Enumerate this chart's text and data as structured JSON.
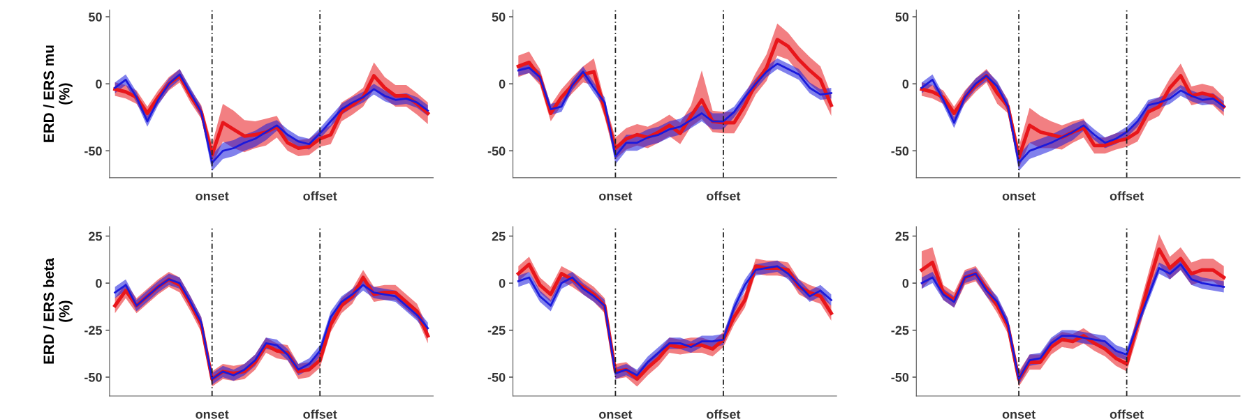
{
  "chart_data": [
    {
      "type": "line",
      "ylabel": "ERD / ERS mu\n(%)",
      "ylim": [
        -70,
        55
      ],
      "yticks": [
        -50,
        0,
        50
      ],
      "ref_lines": [
        {
          "axis": "x",
          "value": "onset",
          "color": "#222222",
          "line_style": "dashed"
        },
        {
          "axis": "x",
          "value": "offset",
          "color": "#222222",
          "line_style": "dashed"
        }
      ],
      "categories": [
        null,
        null,
        null,
        null,
        null,
        null,
        null,
        null,
        null,
        "onset",
        null,
        null,
        null,
        null,
        null,
        null,
        null,
        null,
        null,
        "offset",
        null,
        null,
        null,
        null,
        null,
        null,
        null,
        null,
        null,
        null
      ],
      "series": [
        {
          "color": "#e8161b",
          "values": [
            -4,
            -6,
            -10,
            -22,
            -10,
            0,
            6,
            -9,
            -21,
            -53,
            -29,
            -34,
            -39,
            -38,
            -36,
            -32,
            -44,
            -48,
            -47,
            -41,
            -38,
            -21,
            -16,
            -10,
            6,
            -3,
            -9,
            -9,
            -15,
            -22
          ],
          "lower": [
            -9,
            -11,
            -15,
            -27,
            -15,
            -5,
            1,
            -14,
            -26,
            -61,
            -43,
            -48,
            -51,
            -48,
            -46,
            -40,
            -50,
            -54,
            -53,
            -47,
            -45,
            -28,
            -23,
            -17,
            -4,
            -11,
            -17,
            -17,
            -23,
            -30
          ],
          "upper": [
            1,
            -1,
            -5,
            -17,
            -5,
            5,
            11,
            -4,
            -16,
            -45,
            -15,
            -20,
            -27,
            -28,
            -26,
            -24,
            -38,
            -42,
            -41,
            -35,
            -31,
            -14,
            -9,
            -3,
            16,
            5,
            -1,
            -1,
            -7,
            -14
          ]
        },
        {
          "color": "#1a1adc",
          "values": [
            -3,
            3,
            -10,
            -28,
            -12,
            0,
            7,
            -7,
            -21,
            -59,
            -50,
            -48,
            -44,
            -41,
            -36,
            -31,
            -38,
            -43,
            -45,
            -37,
            -28,
            -19,
            -14,
            -10,
            -4,
            -9,
            -12,
            -11,
            -14,
            -20
          ],
          "lower": [
            -7,
            -1,
            -14,
            -32,
            -16,
            -4,
            3,
            -11,
            -25,
            -65,
            -56,
            -54,
            -50,
            -47,
            -42,
            -35,
            -42,
            -47,
            -49,
            -41,
            -32,
            -23,
            -18,
            -14,
            -8,
            -13,
            -16,
            -15,
            -18,
            -24
          ],
          "upper": [
            1,
            7,
            -6,
            -24,
            -8,
            4,
            11,
            -3,
            -17,
            -53,
            -44,
            -42,
            -38,
            -35,
            -30,
            -27,
            -34,
            -39,
            -41,
            -33,
            -24,
            -15,
            -10,
            -6,
            0,
            -5,
            -8,
            -7,
            -10,
            -16
          ]
        }
      ]
    },
    {
      "type": "line",
      "ylim": [
        -70,
        55
      ],
      "yticks": [
        -50,
        0,
        50
      ],
      "ref_lines": [
        {
          "axis": "x",
          "value": "onset",
          "color": "#222222",
          "line_style": "dashed"
        },
        {
          "axis": "x",
          "value": "offset",
          "color": "#222222",
          "line_style": "dashed"
        }
      ],
      "categories": [
        null,
        null,
        null,
        null,
        null,
        null,
        null,
        null,
        null,
        "onset",
        null,
        null,
        null,
        null,
        null,
        null,
        null,
        null,
        null,
        "offset",
        null,
        null,
        null,
        null,
        null,
        null,
        null,
        null,
        null,
        null
      ],
      "series": [
        {
          "color": "#e8161b",
          "values": [
            13,
            16,
            5,
            -22,
            -10,
            -1,
            7,
            9,
            -19,
            -48,
            -41,
            -38,
            -40,
            -36,
            -31,
            -37,
            -24,
            -12,
            -28,
            -29,
            -29,
            -16,
            0,
            12,
            33,
            28,
            18,
            10,
            3,
            -16
          ],
          "lower": [
            5,
            8,
            -1,
            -28,
            -16,
            -7,
            1,
            -1,
            -25,
            -56,
            -49,
            -46,
            -48,
            -44,
            -39,
            -45,
            -32,
            -26,
            -36,
            -37,
            -37,
            -24,
            -8,
            2,
            21,
            18,
            8,
            0,
            -7,
            -24
          ],
          "upper": [
            21,
            24,
            11,
            -16,
            -4,
            5,
            13,
            19,
            -13,
            -40,
            -33,
            -30,
            -32,
            -28,
            -23,
            -29,
            -16,
            10,
            -20,
            -21,
            -21,
            -8,
            8,
            22,
            45,
            38,
            28,
            20,
            13,
            -8
          ]
        },
        {
          "color": "#1a1adc",
          "values": [
            10,
            12,
            5,
            -19,
            -17,
            -1,
            9,
            -3,
            -14,
            -54,
            -44,
            -44,
            -40,
            -38,
            -34,
            -32,
            -27,
            -22,
            -28,
            -28,
            -21,
            -10,
            0,
            9,
            15,
            11,
            7,
            -3,
            -8,
            -7
          ],
          "lower": [
            6,
            8,
            1,
            -23,
            -21,
            -5,
            5,
            -7,
            -18,
            -60,
            -50,
            -50,
            -46,
            -44,
            -40,
            -38,
            -33,
            -28,
            -34,
            -34,
            -25,
            -14,
            -4,
            5,
            11,
            7,
            3,
            -7,
            -12,
            -11
          ],
          "upper": [
            14,
            16,
            9,
            -15,
            -13,
            3,
            13,
            1,
            -10,
            -48,
            -38,
            -38,
            -34,
            -32,
            -28,
            -26,
            -21,
            -16,
            -22,
            -22,
            -17,
            -6,
            4,
            13,
            19,
            15,
            11,
            1,
            -4,
            -3
          ]
        }
      ]
    },
    {
      "type": "line",
      "ylim": [
        -70,
        55
      ],
      "yticks": [
        -50,
        0,
        50
      ],
      "ref_lines": [
        {
          "axis": "x",
          "value": "onset",
          "color": "#222222",
          "line_style": "dashed"
        },
        {
          "axis": "x",
          "value": "offset",
          "color": "#222222",
          "line_style": "dashed"
        }
      ],
      "categories": [
        null,
        null,
        null,
        null,
        null,
        null,
        null,
        null,
        null,
        "onset",
        null,
        null,
        null,
        null,
        null,
        null,
        null,
        null,
        null,
        "offset",
        null,
        null,
        null,
        null,
        null,
        null,
        null,
        null,
        null,
        null
      ],
      "series": [
        {
          "color": "#e8161b",
          "values": [
            -4,
            -6,
            -10,
            -22,
            -10,
            -1,
            6,
            -7,
            -17,
            -55,
            -31,
            -36,
            -38,
            -40,
            -36,
            -33,
            -46,
            -46,
            -43,
            -41,
            -36,
            -21,
            -17,
            -3,
            6,
            -9,
            -7,
            -9,
            -17,
            null
          ],
          "lower": [
            -9,
            -11,
            -15,
            -27,
            -15,
            -6,
            1,
            -15,
            -22,
            -63,
            -44,
            -48,
            -48,
            -49,
            -44,
            -40,
            -52,
            -52,
            -49,
            -47,
            -43,
            -28,
            -24,
            -10,
            -3,
            -16,
            -14,
            -16,
            -24,
            null
          ],
          "upper": [
            1,
            -1,
            -5,
            -17,
            -5,
            4,
            11,
            1,
            -12,
            -47,
            -18,
            -24,
            -28,
            -31,
            -28,
            -26,
            -40,
            -40,
            -37,
            -35,
            -29,
            -14,
            -10,
            4,
            15,
            -2,
            0,
            -2,
            -10,
            null
          ]
        },
        {
          "color": "#1a1adc",
          "values": [
            -3,
            3,
            -12,
            -29,
            -10,
            0,
            6,
            -2,
            -17,
            -59,
            -50,
            -47,
            -44,
            -40,
            -36,
            -31,
            -38,
            -44,
            -41,
            -36,
            -28,
            -16,
            -14,
            -11,
            -5,
            -9,
            -12,
            -11,
            -17,
            null
          ],
          "lower": [
            -7,
            -1,
            -16,
            -33,
            -14,
            -4,
            2,
            -6,
            -21,
            -65,
            -56,
            -53,
            -50,
            -46,
            -42,
            -35,
            -42,
            -48,
            -45,
            -40,
            -32,
            -20,
            -18,
            -15,
            -9,
            -13,
            -16,
            -15,
            -21,
            null
          ],
          "upper": [
            1,
            7,
            -8,
            -25,
            -6,
            4,
            10,
            2,
            -13,
            -53,
            -44,
            -41,
            -38,
            -34,
            -30,
            -27,
            -34,
            -40,
            -37,
            -32,
            -24,
            -12,
            -10,
            -7,
            -1,
            -5,
            -8,
            -7,
            -13,
            null
          ]
        }
      ]
    },
    {
      "type": "line",
      "ylabel": "ERD / ERS beta\n(%)",
      "ylim": [
        -60,
        30
      ],
      "yticks": [
        -50,
        -25,
        0,
        25
      ],
      "ref_lines": [
        {
          "axis": "x",
          "value": "onset",
          "color": "#222222",
          "line_style": "dashed"
        },
        {
          "axis": "x",
          "value": "offset",
          "color": "#222222",
          "line_style": "dashed"
        }
      ],
      "categories": [
        null,
        null,
        null,
        null,
        null,
        null,
        null,
        null,
        null,
        "onset",
        null,
        null,
        null,
        null,
        null,
        null,
        null,
        null,
        null,
        "offset",
        null,
        null,
        null,
        null,
        null,
        null,
        null,
        null,
        null,
        null
      ],
      "series": [
        {
          "color": "#e8161b",
          "values": [
            -12,
            -4,
            -12,
            -7,
            -2,
            2,
            -1,
            -11,
            -22,
            -51,
            -47,
            -48,
            -47,
            -42,
            -33,
            -36,
            -37,
            -47,
            -46,
            -41,
            -22,
            -12,
            -7,
            3,
            -6,
            -5,
            -5,
            -10,
            -15,
            -28
          ],
          "lower": [
            -16,
            -8,
            -16,
            -11,
            -6,
            -2,
            -5,
            -15,
            -26,
            -55,
            -51,
            -52,
            -51,
            -46,
            -37,
            -40,
            -41,
            -51,
            -50,
            -45,
            -26,
            -16,
            -11,
            -1,
            -10,
            -9,
            -9,
            -14,
            -19,
            -32
          ],
          "upper": [
            -8,
            0,
            -8,
            -3,
            2,
            6,
            3,
            -7,
            -18,
            -47,
            -43,
            -44,
            -43,
            -38,
            -29,
            -32,
            -33,
            -43,
            -42,
            -37,
            -18,
            -8,
            -3,
            7,
            -2,
            -1,
            -1,
            -6,
            -11,
            -24
          ]
        },
        {
          "color": "#1a1adc",
          "values": [
            -5,
            -1,
            -12,
            -7,
            -2,
            2,
            0,
            -10,
            -21,
            -51,
            -47,
            -49,
            -46,
            -41,
            -32,
            -33,
            -38,
            -46,
            -43,
            -36,
            -18,
            -10,
            -6,
            -1,
            -5,
            -6,
            -7,
            -12,
            -17,
            -24
          ],
          "lower": [
            -8,
            -4,
            -15,
            -10,
            -5,
            -1,
            -3,
            -13,
            -24,
            -54,
            -50,
            -52,
            -49,
            -44,
            -35,
            -36,
            -41,
            -49,
            -46,
            -39,
            -21,
            -13,
            -9,
            -4,
            -8,
            -9,
            -10,
            -15,
            -20,
            -27
          ],
          "upper": [
            -2,
            2,
            -9,
            -4,
            1,
            5,
            3,
            -7,
            -18,
            -48,
            -44,
            -46,
            -43,
            -38,
            -29,
            -30,
            -35,
            -43,
            -40,
            -33,
            -15,
            -7,
            -3,
            2,
            -2,
            -3,
            -4,
            -9,
            -14,
            -21
          ]
        }
      ]
    },
    {
      "type": "line",
      "ylim": [
        -60,
        30
      ],
      "yticks": [
        -50,
        -25,
        0,
        25
      ],
      "ref_lines": [
        {
          "axis": "x",
          "value": "onset",
          "color": "#222222",
          "line_style": "dashed"
        },
        {
          "axis": "x",
          "value": "offset",
          "color": "#222222",
          "line_style": "dashed"
        }
      ],
      "categories": [
        null,
        null,
        null,
        null,
        null,
        null,
        null,
        null,
        null,
        "onset",
        null,
        null,
        null,
        null,
        null,
        null,
        null,
        null,
        null,
        "offset",
        null,
        null,
        null,
        null,
        null,
        null,
        null,
        null,
        null,
        null
      ],
      "series": [
        {
          "color": "#e8161b",
          "values": [
            5,
            10,
            -1,
            -6,
            5,
            2,
            -2,
            -6,
            -12,
            -47,
            -46,
            -51,
            -45,
            -40,
            -33,
            -34,
            -33,
            -33,
            -35,
            -30,
            -18,
            -9,
            9,
            8,
            8,
            7,
            -2,
            -5,
            -7,
            -16
          ],
          "lower": [
            1,
            6,
            -5,
            -10,
            1,
            -2,
            -6,
            -10,
            -16,
            -51,
            -50,
            -55,
            -49,
            -44,
            -37,
            -38,
            -37,
            -37,
            -39,
            -34,
            -22,
            -13,
            5,
            4,
            4,
            3,
            -6,
            -9,
            -11,
            -20
          ],
          "upper": [
            9,
            14,
            3,
            -2,
            9,
            6,
            2,
            -2,
            -8,
            -43,
            -42,
            -47,
            -41,
            -36,
            -29,
            -30,
            -29,
            -29,
            -31,
            -26,
            -14,
            -5,
            13,
            12,
            12,
            11,
            2,
            -1,
            -3,
            -12
          ]
        },
        {
          "color": "#1a1adc",
          "values": [
            1,
            3,
            -7,
            -12,
            0,
            3,
            -3,
            -7,
            -12,
            -48,
            -46,
            -49,
            -42,
            -37,
            -32,
            -32,
            -34,
            -31,
            -31,
            -30,
            -13,
            -1,
            7,
            8,
            9,
            5,
            -1,
            -7,
            -4,
            -9
          ],
          "lower": [
            -2,
            0,
            -10,
            -15,
            -3,
            0,
            -6,
            -10,
            -15,
            -51,
            -49,
            -52,
            -45,
            -40,
            -35,
            -35,
            -37,
            -34,
            -34,
            -33,
            -16,
            -4,
            4,
            5,
            6,
            2,
            -4,
            -10,
            -7,
            -12
          ],
          "upper": [
            4,
            6,
            -4,
            -9,
            3,
            6,
            0,
            -4,
            -9,
            -45,
            -43,
            -46,
            -39,
            -34,
            -29,
            -29,
            -31,
            -28,
            -28,
            -27,
            -10,
            2,
            10,
            11,
            12,
            8,
            2,
            -4,
            -1,
            -6
          ]
        }
      ]
    },
    {
      "type": "line",
      "ylim": [
        -60,
        30
      ],
      "yticks": [
        -50,
        -25,
        0,
        25
      ],
      "ref_lines": [
        {
          "axis": "x",
          "value": "onset",
          "color": "#222222",
          "line_style": "dashed"
        },
        {
          "axis": "x",
          "value": "offset",
          "color": "#222222",
          "line_style": "dashed"
        }
      ],
      "categories": [
        null,
        null,
        null,
        null,
        null,
        null,
        null,
        null,
        null,
        "onset",
        null,
        null,
        null,
        null,
        null,
        null,
        null,
        null,
        null,
        "offset",
        null,
        null,
        null,
        null,
        null,
        null,
        null,
        null,
        null,
        null
      ],
      "series": [
        {
          "color": "#e8161b",
          "values": [
            7,
            11,
            -5,
            -9,
            3,
            5,
            -3,
            -12,
            -23,
            -51,
            -42,
            -42,
            -34,
            -30,
            -31,
            -28,
            -32,
            -35,
            -40,
            -43,
            -22,
            -1,
            18,
            8,
            13,
            5,
            7,
            7,
            3,
            null
          ],
          "lower": [
            -3,
            3,
            -9,
            -13,
            -1,
            1,
            -7,
            -16,
            -27,
            -55,
            -46,
            -46,
            -38,
            -34,
            -35,
            -32,
            -36,
            -39,
            -44,
            -47,
            -28,
            -7,
            10,
            2,
            7,
            -1,
            1,
            1,
            -3,
            null
          ],
          "upper": [
            17,
            19,
            -1,
            -5,
            7,
            9,
            1,
            -8,
            -19,
            -47,
            -38,
            -38,
            -30,
            -26,
            -27,
            -24,
            -28,
            -31,
            -36,
            -39,
            -16,
            5,
            26,
            14,
            19,
            11,
            13,
            13,
            9,
            null
          ]
        },
        {
          "color": "#1a1adc",
          "values": [
            0,
            3,
            -6,
            -10,
            3,
            5,
            -4,
            -10,
            -22,
            -51,
            -41,
            -40,
            -32,
            -28,
            -28,
            -29,
            -30,
            -31,
            -36,
            -38,
            -22,
            -7,
            8,
            5,
            10,
            2,
            0,
            -1,
            -2,
            null
          ],
          "lower": [
            -3,
            0,
            -9,
            -13,
            0,
            2,
            -7,
            -13,
            -25,
            -54,
            -44,
            -43,
            -35,
            -31,
            -31,
            -32,
            -33,
            -34,
            -39,
            -41,
            -25,
            -10,
            5,
            2,
            7,
            -1,
            -3,
            -4,
            -5,
            null
          ],
          "upper": [
            3,
            6,
            -3,
            -7,
            6,
            8,
            -1,
            -7,
            -19,
            -48,
            -38,
            -37,
            -29,
            -25,
            -25,
            -26,
            -27,
            -28,
            -33,
            -35,
            -19,
            -4,
            11,
            8,
            13,
            5,
            3,
            2,
            1,
            null
          ]
        }
      ]
    }
  ]
}
